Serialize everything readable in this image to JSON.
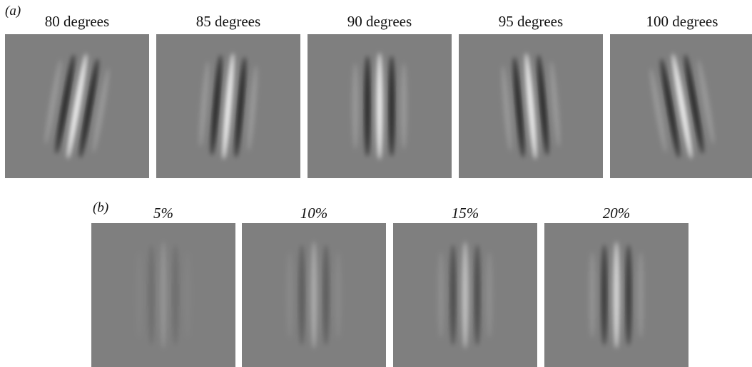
{
  "figure": {
    "panel_a": {
      "label": "(a)",
      "items": [
        {
          "caption": "80 degrees",
          "orientation_deg": 80,
          "contrast_pct": 25
        },
        {
          "caption": "85 degrees",
          "orientation_deg": 85,
          "contrast_pct": 25
        },
        {
          "caption": "90 degrees",
          "orientation_deg": 90,
          "contrast_pct": 25
        },
        {
          "caption": "95 degrees",
          "orientation_deg": 95,
          "contrast_pct": 25
        },
        {
          "caption": "100 degrees",
          "orientation_deg": 100,
          "contrast_pct": 25
        }
      ]
    },
    "panel_b": {
      "label": "(b)",
      "items": [
        {
          "caption": "5%",
          "orientation_deg": 90,
          "contrast_pct": 5
        },
        {
          "caption": "10%",
          "orientation_deg": 90,
          "contrast_pct": 10
        },
        {
          "caption": "15%",
          "orientation_deg": 90,
          "contrast_pct": 15
        },
        {
          "caption": "20%",
          "orientation_deg": 90,
          "contrast_pct": 20
        }
      ]
    },
    "colors": {
      "background_gray": "#7f7f7f",
      "light_bar": "#ffffff",
      "dark_bar": "#000000"
    }
  }
}
